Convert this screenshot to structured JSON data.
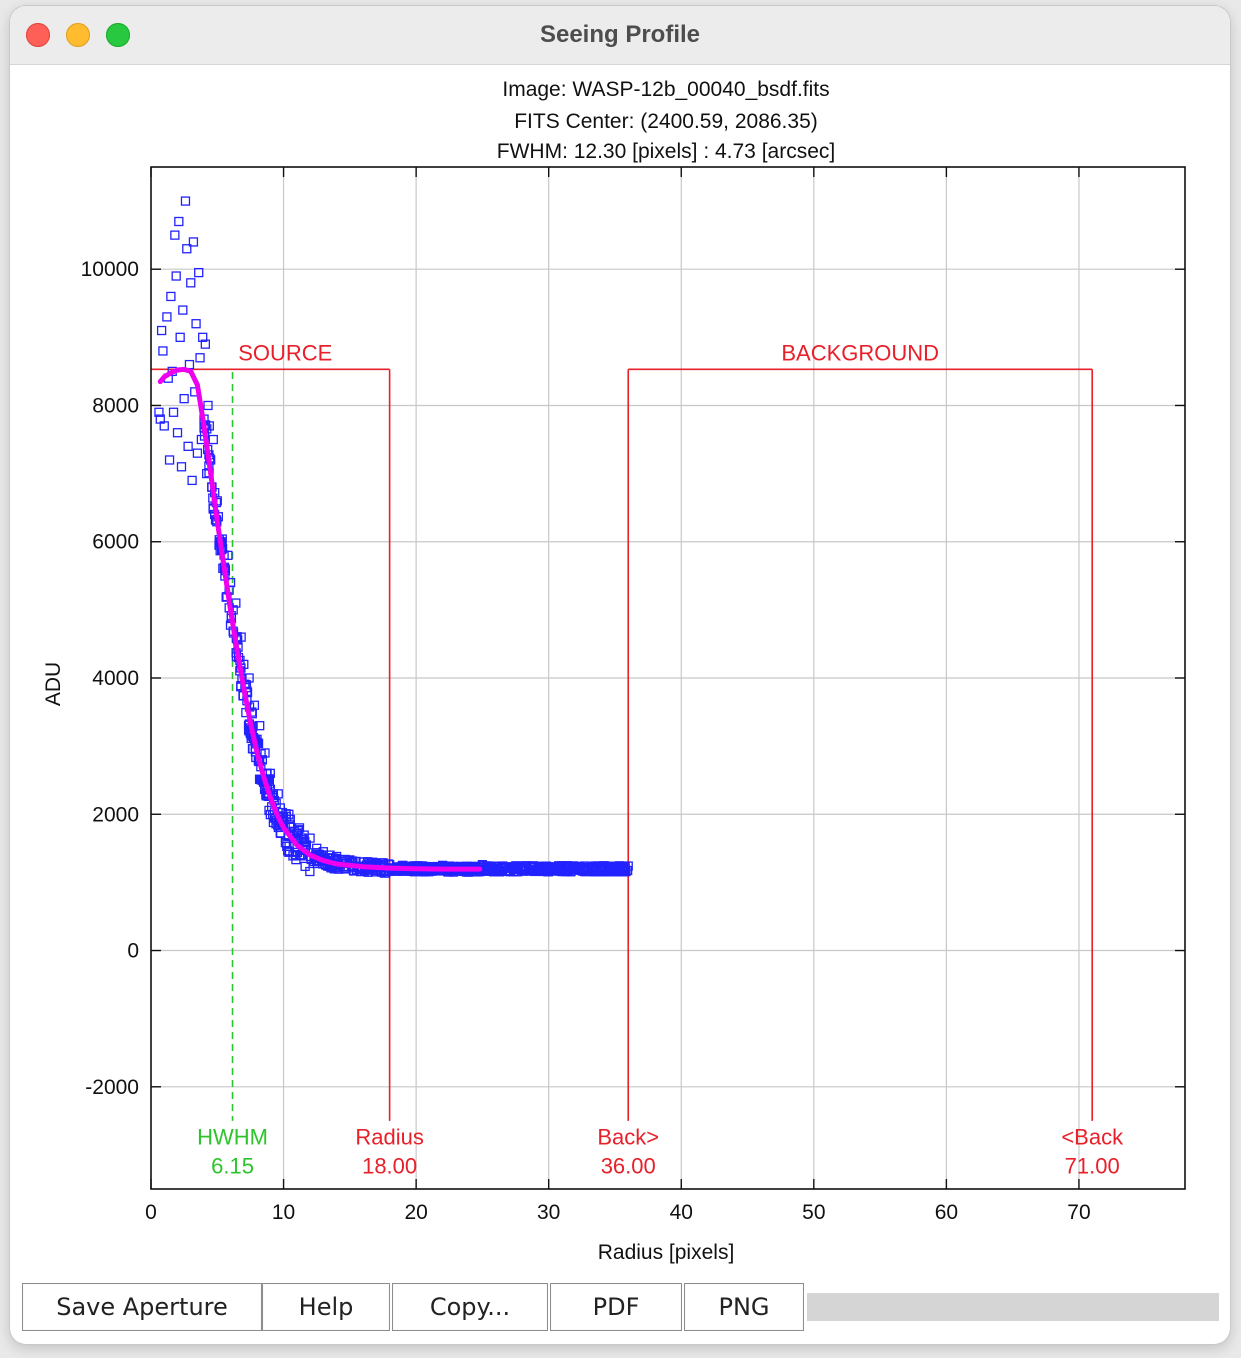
{
  "window": {
    "title": "Seeing Profile"
  },
  "plot": {
    "title_lines": [
      "Image: WASP-12b_00040_bsdf.fits",
      "FITS Center: (2400.59,  2086.35)",
      "FWHM: 12.30 [pixels] : 4.73 [arcsec]"
    ],
    "xlabel": "Radius [pixels]",
    "ylabel": "ADU",
    "xlim": [
      0,
      78
    ],
    "ylim": [
      -3500,
      11500
    ],
    "x_ticks": [
      0,
      10,
      20,
      30,
      40,
      50,
      60,
      70
    ],
    "y_ticks": [
      -2000,
      0,
      2000,
      4000,
      6000,
      8000,
      10000
    ],
    "colors": {
      "points": "#2222ff",
      "fit": "#ee00ee",
      "aperture": "#e8202a",
      "hwhm": "#2ec42e",
      "grid": "#c8c8c8"
    }
  },
  "chart_data": {
    "type": "scatter",
    "title": "Image: WASP-12b_00040_bsdf.fits",
    "xlabel": "Radius [pixels]",
    "ylabel": "ADU",
    "xlim": [
      0,
      78
    ],
    "ylim": [
      -3500,
      11500
    ],
    "grid": true,
    "fwhm_pixels": 12.3,
    "fwhm_arcsec": 4.73,
    "series": [
      {
        "type": "scatter",
        "values": [
          [
            0.6,
            7900
          ],
          [
            0.7,
            7800
          ],
          [
            0.8,
            9100
          ],
          [
            0.9,
            8800
          ],
          [
            1.0,
            7700
          ],
          [
            1.2,
            9300
          ],
          [
            1.3,
            8400
          ],
          [
            1.4,
            7200
          ],
          [
            1.5,
            9600
          ],
          [
            1.6,
            8500
          ],
          [
            1.7,
            7900
          ],
          [
            1.8,
            10500
          ],
          [
            1.9,
            9900
          ],
          [
            2.0,
            7600
          ],
          [
            2.1,
            10700
          ],
          [
            2.2,
            9000
          ],
          [
            2.3,
            7100
          ],
          [
            2.4,
            9400
          ],
          [
            2.5,
            8100
          ],
          [
            2.6,
            11000
          ],
          [
            2.7,
            10300
          ],
          [
            2.8,
            7400
          ],
          [
            2.9,
            8600
          ],
          [
            3.0,
            9800
          ],
          [
            3.1,
            6900
          ],
          [
            3.2,
            10400
          ],
          [
            3.3,
            8200
          ],
          [
            3.4,
            9200
          ],
          [
            3.5,
            7300
          ],
          [
            3.6,
            9950
          ],
          [
            3.7,
            8700
          ],
          [
            3.8,
            7500
          ],
          [
            3.9,
            9000
          ],
          [
            4.0,
            7800
          ],
          [
            4.1,
            8900
          ],
          [
            4.2,
            7000
          ],
          [
            4.3,
            8000
          ],
          [
            4.4,
            7700
          ],
          [
            4.5,
            7200
          ],
          [
            4.6,
            6800
          ],
          [
            4.7,
            7500
          ],
          [
            4.8,
            6400
          ],
          [
            5.0,
            6600
          ],
          [
            5.2,
            6000
          ],
          [
            5.4,
            5900
          ],
          [
            5.6,
            5600
          ],
          [
            5.8,
            5800
          ],
          [
            6.0,
            5400
          ],
          [
            6.2,
            5000
          ],
          [
            6.4,
            5100
          ],
          [
            6.6,
            4300
          ],
          [
            6.8,
            4600
          ],
          [
            7.0,
            4200
          ],
          [
            7.2,
            3900
          ],
          [
            7.4,
            4000
          ],
          [
            7.6,
            3500
          ],
          [
            7.8,
            3600
          ],
          [
            8.0,
            3100
          ],
          [
            8.2,
            3300
          ],
          [
            8.4,
            2800
          ],
          [
            8.6,
            2900
          ],
          [
            8.8,
            2500
          ],
          [
            9.0,
            2600
          ],
          [
            9.3,
            2200
          ],
          [
            9.6,
            2300
          ],
          [
            10.0,
            1950
          ],
          [
            10.4,
            2000
          ],
          [
            10.8,
            1750
          ],
          [
            11.2,
            1800
          ],
          [
            11.6,
            1600
          ],
          [
            12.0,
            1650
          ],
          [
            12.5,
            1500
          ],
          [
            13.0,
            1450
          ],
          [
            13.5,
            1400
          ],
          [
            14.0,
            1380
          ],
          [
            15.0,
            1330
          ],
          [
            16.0,
            1300
          ],
          [
            17.0,
            1280
          ],
          [
            18.0,
            1260
          ],
          [
            19.0,
            1250
          ],
          [
            20.0,
            1240
          ],
          [
            21.0,
            1230
          ],
          [
            22.0,
            1250
          ],
          [
            23.0,
            1200
          ],
          [
            24.0,
            1230
          ],
          [
            25.0,
            1260
          ],
          [
            26.0,
            1190
          ],
          [
            27.0,
            1220
          ],
          [
            28.0,
            1240
          ],
          [
            29.0,
            1180
          ],
          [
            30.0,
            1230
          ],
          [
            31.0,
            1200
          ],
          [
            32.0,
            1220
          ],
          [
            33.0,
            1190
          ],
          [
            34.0,
            1210
          ],
          [
            35.0,
            1180
          ],
          [
            36.0,
            1240
          ]
        ]
      },
      {
        "type": "line",
        "values": [
          [
            0.7,
            8350
          ],
          [
            1.0,
            8420
          ],
          [
            1.5,
            8480
          ],
          [
            2.0,
            8520
          ],
          [
            2.5,
            8530
          ],
          [
            3.0,
            8500
          ],
          [
            3.5,
            8300
          ],
          [
            4.0,
            7700
          ],
          [
            4.5,
            7000
          ],
          [
            5.0,
            6300
          ],
          [
            5.5,
            5650
          ],
          [
            6.0,
            5000
          ],
          [
            6.5,
            4400
          ],
          [
            7.0,
            3850
          ],
          [
            7.5,
            3350
          ],
          [
            8.0,
            2900
          ],
          [
            8.5,
            2550
          ],
          [
            9.0,
            2250
          ],
          [
            9.5,
            2000
          ],
          [
            10.0,
            1800
          ],
          [
            11.0,
            1550
          ],
          [
            12.0,
            1400
          ],
          [
            13.0,
            1320
          ],
          [
            14.0,
            1270
          ],
          [
            16.0,
            1230
          ],
          [
            18.0,
            1210
          ],
          [
            20.0,
            1200
          ],
          [
            22.0,
            1195
          ],
          [
            24.0,
            1195
          ],
          [
            24.8,
            1195
          ]
        ]
      }
    ],
    "markers": {
      "hwhm": {
        "label": "HWHM",
        "value_label": "6.15",
        "x": 6.15
      },
      "radius": {
        "label": "Radius",
        "value_label": "18.00",
        "x": 18.0
      },
      "back_inner": {
        "label": "Back>",
        "value_label": "36.00",
        "x": 36.0
      },
      "back_outer": {
        "label": "<Back",
        "value_label": "71.00",
        "x": 71.0
      },
      "aperture_level": 8530,
      "source_label": "SOURCE",
      "background_label": "BACKGROUND"
    }
  },
  "buttons": [
    {
      "id": "save-aperture-button",
      "label": "Save Aperture"
    },
    {
      "id": "help-button",
      "label": "Help"
    },
    {
      "id": "copy-button",
      "label": "Copy..."
    },
    {
      "id": "pdf-button",
      "label": "PDF"
    },
    {
      "id": "png-button",
      "label": "PNG"
    }
  ]
}
